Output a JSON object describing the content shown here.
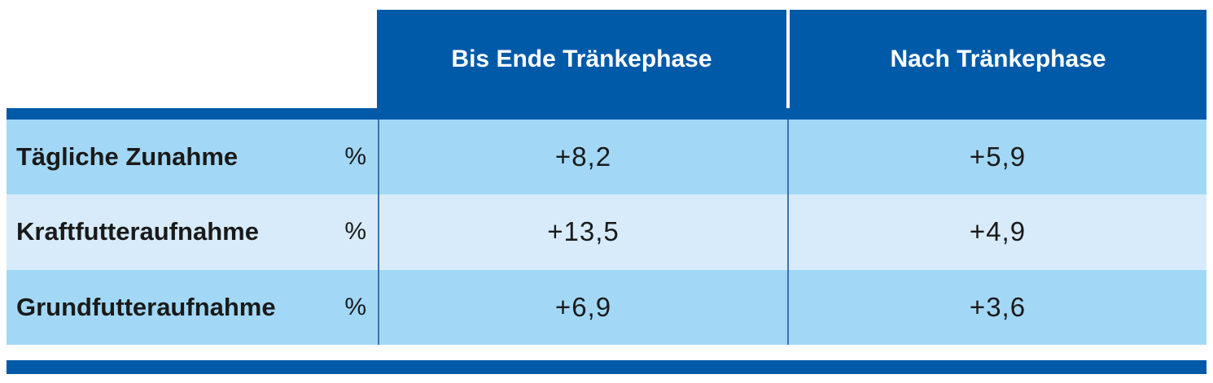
{
  "table": {
    "columns": [
      {
        "label": "Bis Ende Tränkephase"
      },
      {
        "label": "Nach Tränkephase"
      }
    ],
    "rows": [
      {
        "label": "Tägliche Zunahme",
        "unit": "%",
        "values": [
          "+8,2",
          "+5,9"
        ]
      },
      {
        "label": "Kraftfutteraufnahme",
        "unit": "%",
        "values": [
          "+13,5",
          "+4,9"
        ]
      },
      {
        "label": "Grundfutteraufnahme",
        "unit": "%",
        "values": [
          "+6,9",
          "+3,6"
        ]
      }
    ],
    "colors": {
      "header_blue": "#005AA8",
      "header_text": "#FFFFFF",
      "row_light_blue": "#A2D8F6",
      "row_lighter_blue": "#D8EBFA",
      "separator_blue": "#3C73AF",
      "body_text": "#1A1A1A"
    }
  },
  "chart_data": {
    "type": "table",
    "columns": [
      "",
      "unit",
      "Bis Ende Tränkephase",
      "Nach Tränkephase"
    ],
    "rows": [
      [
        "Tägliche Zunahme",
        "%",
        "+8,2",
        "+5,9"
      ],
      [
        "Kraftfutteraufnahme",
        "%",
        "+13,5",
        "+4,9"
      ],
      [
        "Grundfutteraufnahme",
        "%",
        "+6,9",
        "+3,6"
      ]
    ],
    "values_numeric": {
      "Tägliche Zunahme": [
        8.2,
        5.9
      ],
      "Kraftfutteraufnahme": [
        13.5,
        4.9
      ],
      "Grundfutteraufnahme": [
        6.9,
        3.6
      ]
    },
    "unit": "%"
  }
}
